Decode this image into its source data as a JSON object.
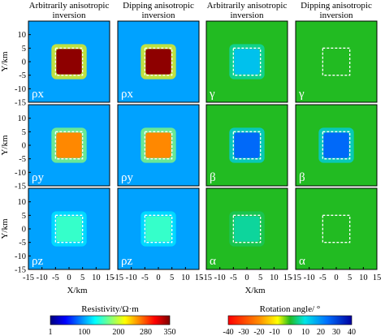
{
  "chart_data": {
    "type": "heatmap",
    "column_titles": [
      "Arbitrarily anisotropic inversion",
      "Dipping anisotropic inversion",
      "Arbitrarily anisotropic inversion",
      "Dipping anisotropic inversion"
    ],
    "xlabel": "X/km",
    "ylabel": "Y/km",
    "x_ticks": [
      -15,
      -10,
      -5,
      0,
      5,
      10,
      15
    ],
    "y_ticks": [
      10,
      5,
      0,
      -5,
      -10,
      -15
    ],
    "xlim": [
      -15,
      15
    ],
    "ylim": [
      -15,
      15
    ],
    "anomaly_box": {
      "x": [
        -5,
        5
      ],
      "y": [
        -5,
        5
      ]
    },
    "panel_labels": [
      [
        "ρx",
        "ρx",
        "γ",
        "γ"
      ],
      [
        "ρy",
        "ρy",
        "β",
        "β"
      ],
      [
        "ρz",
        "ρz",
        "α",
        "α"
      ]
    ],
    "colorbars": [
      {
        "label": "Resistivity/Ω·m",
        "ticks": [
          1,
          100,
          200,
          280,
          350
        ],
        "range": [
          1,
          350
        ]
      },
      {
        "label": "Rotation angle/ °",
        "ticks": [
          -40,
          -30,
          -20,
          -10,
          0,
          10,
          20,
          30,
          40
        ],
        "range": [
          -40,
          40
        ]
      }
    ],
    "panels": [
      [
        {
          "kind": "resistivity",
          "background": 100,
          "anomaly": 345
        },
        {
          "kind": "resistivity",
          "background": 100,
          "anomaly": 345
        },
        {
          "kind": "angle",
          "background": 0,
          "anomaly": 14
        },
        {
          "kind": "angle",
          "background": 0,
          "anomaly": 0
        }
      ],
      [
        {
          "kind": "resistivity",
          "background": 100,
          "anomaly": 260
        },
        {
          "kind": "resistivity",
          "background": 100,
          "anomaly": 260
        },
        {
          "kind": "angle",
          "background": 0,
          "anomaly": 25
        },
        {
          "kind": "angle",
          "background": 0,
          "anomaly": 25
        }
      ],
      [
        {
          "kind": "resistivity",
          "background": 100,
          "anomaly": 150
        },
        {
          "kind": "resistivity",
          "background": 100,
          "anomaly": 150
        },
        {
          "kind": "angle",
          "background": 0,
          "anomaly": 6
        },
        {
          "kind": "angle",
          "background": 0,
          "anomaly": 0
        }
      ]
    ]
  }
}
